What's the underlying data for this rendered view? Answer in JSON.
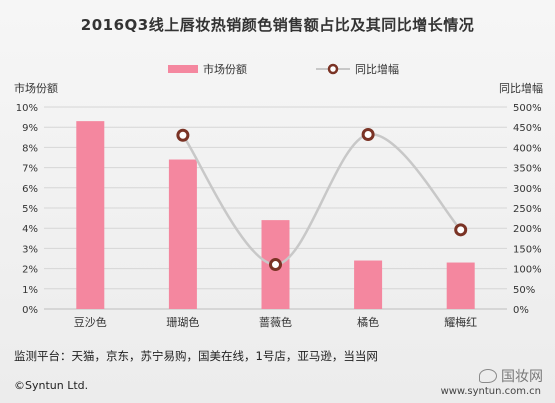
{
  "title": "2016Q3线上唇妆热销颜色销售额占比及其同比增长情况",
  "note": "监测平台：天猫，京东，苏宁易购，国美在线，1号店，亚马逊，当当网",
  "copyright": "©Syntun Ltd.",
  "site": "www.syntun.com.cn",
  "watermark": "国妆网",
  "colors": {
    "bar": "#f4879f",
    "line": "#c8c8c8",
    "marker_fill": "#ffffff",
    "marker_stroke": "#7a3325"
  },
  "chart_data": {
    "type": "bar",
    "categories": [
      "豆沙色",
      "珊瑚色",
      "蔷薇色",
      "橘色",
      "耀梅红"
    ],
    "series": [
      {
        "name": "市场份额",
        "type": "bar",
        "axis": "left",
        "values": [
          9.3,
          7.4,
          4.4,
          2.4,
          2.3
        ]
      },
      {
        "name": "同比增幅",
        "type": "line",
        "axis": "right",
        "values": [
          null,
          430,
          110,
          432,
          196
        ]
      }
    ],
    "ylabel": "市场份额",
    "y2label": "同比增幅",
    "ylim": [
      0,
      10
    ],
    "y2lim": [
      0,
      500
    ],
    "yticks": [
      "0%",
      "1%",
      "2%",
      "3%",
      "4%",
      "5%",
      "6%",
      "7%",
      "8%",
      "9%",
      "10%"
    ],
    "y2ticks": [
      "0%",
      "50%",
      "100%",
      "150%",
      "200%",
      "250%",
      "300%",
      "350%",
      "400%",
      "450%",
      "500%"
    ],
    "grid": true,
    "legend": "top"
  }
}
